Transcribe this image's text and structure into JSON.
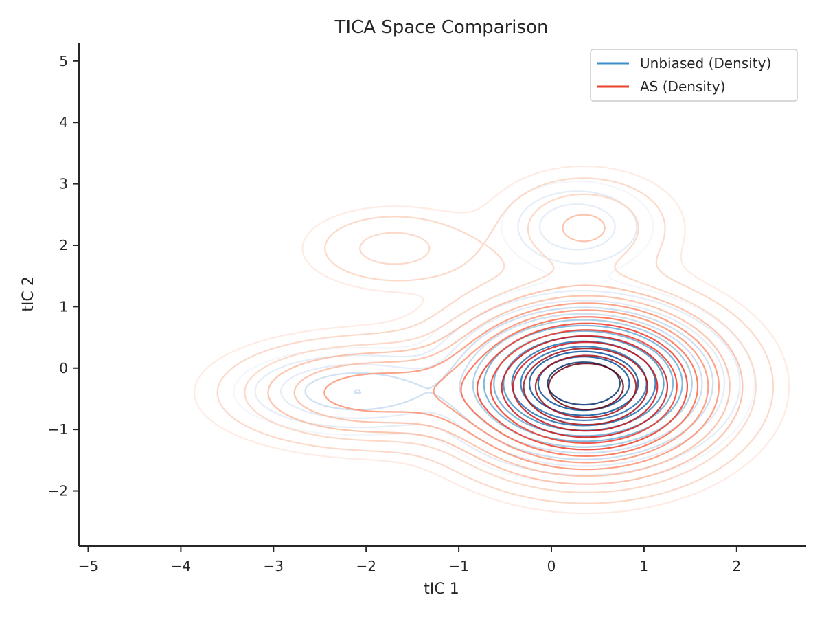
{
  "chart_data": {
    "type": "contour",
    "title": "TICA Space Comparison",
    "xlabel": "tIC 1",
    "ylabel": "tIC 2",
    "xlim": [
      -5.1,
      2.75
    ],
    "ylim": [
      -2.9,
      5.3
    ],
    "xticks": [
      -5,
      -4,
      -3,
      -2,
      -1,
      0,
      1,
      2
    ],
    "yticks": [
      -2,
      -1,
      0,
      1,
      2,
      3,
      4,
      5
    ],
    "xtick_labels": [
      "−5",
      "−4",
      "−3",
      "−2",
      "−1",
      "0",
      "1",
      "2"
    ],
    "ytick_labels": [
      "−2",
      "−1",
      "0",
      "1",
      "2",
      "3",
      "4",
      "5"
    ],
    "grid": false,
    "legend_position": "top-right",
    "series": [
      {
        "name": "Unbiased (Density)",
        "color": "#3a8fc9",
        "palette": [
          "#f1f6fc",
          "#dfeaf7",
          "#c6dbef",
          "#9ecae1",
          "#6baed6",
          "#4292c6",
          "#2171b5",
          "#08519c",
          "#08306b"
        ],
        "components": [
          {
            "cx": 0.35,
            "cy": -0.25,
            "sx": 0.62,
            "sy": 0.55,
            "w": 1.0
          },
          {
            "cx": -2.1,
            "cy": -0.38,
            "sx": 0.62,
            "sy": 0.33,
            "w": 0.12
          },
          {
            "cx": 0.28,
            "cy": 2.3,
            "sx": 0.42,
            "sy": 0.38,
            "w": 0.08
          }
        ],
        "levels": [
          0.012,
          0.025,
          0.05,
          0.08,
          0.12,
          0.17,
          0.23,
          0.3,
          0.38,
          0.46,
          0.55,
          0.64,
          0.73,
          0.82
        ]
      },
      {
        "name": "AS (Density)",
        "color": "#e8412c",
        "palette": [
          "#fee8de",
          "#fcd4c1",
          "#fcbba1",
          "#fc9272",
          "#fb6a4a",
          "#ef3b2c",
          "#cb181d",
          "#a50f15",
          "#67000d"
        ],
        "components": [
          {
            "cx": 0.38,
            "cy": -0.3,
            "sx": 0.72,
            "sy": 0.68,
            "w": 1.0
          },
          {
            "cx": -1.95,
            "cy": -0.4,
            "sx": 0.8,
            "sy": 0.45,
            "w": 0.17
          },
          {
            "cx": -1.7,
            "cy": 1.95,
            "sx": 0.55,
            "sy": 0.38,
            "w": 0.05
          },
          {
            "cx": 0.35,
            "cy": 2.3,
            "sx": 0.55,
            "sy": 0.5,
            "w": 0.07
          }
        ],
        "levels": [
          0.01,
          0.02,
          0.04,
          0.065,
          0.1,
          0.14,
          0.19,
          0.25,
          0.32,
          0.4,
          0.48,
          0.57,
          0.66,
          0.76,
          0.86
        ]
      }
    ]
  }
}
